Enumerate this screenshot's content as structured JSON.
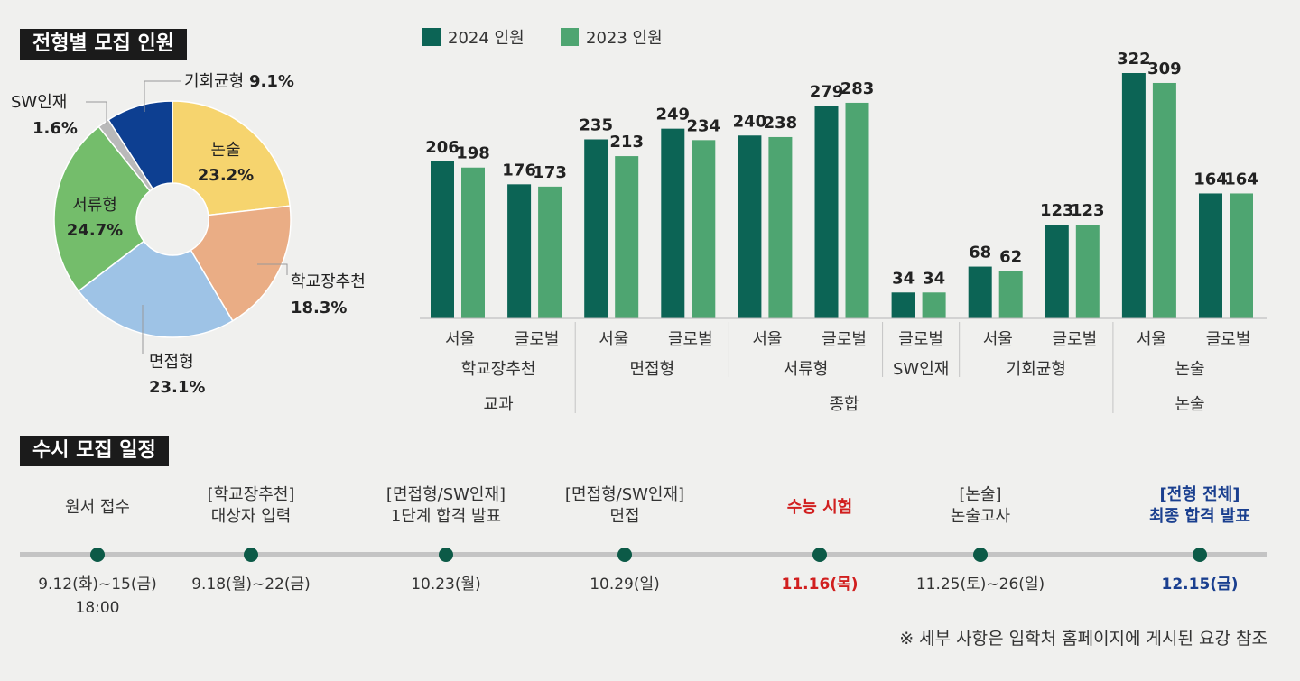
{
  "sections": {
    "composition_title": "전형별 모집 인원",
    "schedule_title": "수시 모집 일정"
  },
  "chart_data": [
    {
      "type": "pie",
      "title": "전형별 모집 인원",
      "donut": true,
      "slices": [
        {
          "label": "논술",
          "value": 23.2,
          "display": "23.2%",
          "color": "#f6d46e"
        },
        {
          "label": "학교장추천",
          "value": 18.3,
          "display": "18.3%",
          "color": "#eaad85"
        },
        {
          "label": "면접형",
          "value": 23.1,
          "display": "23.1%",
          "color": "#9ec3e6"
        },
        {
          "label": "서류형",
          "value": 24.7,
          "display": "24.7%",
          "color": "#74bd6b"
        },
        {
          "label": "SW인재",
          "value": 1.6,
          "display": "1.6%",
          "color": "#b9b9b9"
        },
        {
          "label": "기회균형",
          "value": 9.1,
          "display": "9.1%",
          "color": "#0d3f91"
        }
      ]
    },
    {
      "type": "bar",
      "title": "",
      "legend": [
        "2024 인원",
        "2023 인원"
      ],
      "colors": [
        "#0c6455",
        "#4ea571"
      ],
      "categories": [
        {
          "campus": "서울",
          "track": "학교장추천",
          "group": "교과"
        },
        {
          "campus": "글로벌",
          "track": "학교장추천",
          "group": "교과"
        },
        {
          "campus": "서울",
          "track": "면접형",
          "group": "종합"
        },
        {
          "campus": "글로벌",
          "track": "면접형",
          "group": "종합"
        },
        {
          "campus": "서울",
          "track": "서류형",
          "group": "종합"
        },
        {
          "campus": "글로벌",
          "track": "서류형",
          "group": "종합"
        },
        {
          "campus": "글로벌",
          "track": "SW인재",
          "group": "종합"
        },
        {
          "campus": "서울",
          "track": "기회균형",
          "group": "종합"
        },
        {
          "campus": "글로벌",
          "track": "기회균형",
          "group": "종합"
        },
        {
          "campus": "서울",
          "track": "논술",
          "group": "논술"
        },
        {
          "campus": "글로벌",
          "track": "논술",
          "group": "논술"
        }
      ],
      "series": [
        {
          "name": "2024 인원",
          "values": [
            206,
            176,
            235,
            249,
            240,
            279,
            34,
            68,
            123,
            322,
            164
          ]
        },
        {
          "name": "2023 인원",
          "values": [
            198,
            173,
            213,
            234,
            238,
            283,
            34,
            62,
            123,
            309,
            164
          ]
        }
      ],
      "tracks": [
        {
          "label": "학교장추천",
          "span": [
            0,
            1
          ]
        },
        {
          "label": "면접형",
          "span": [
            2,
            3
          ]
        },
        {
          "label": "서류형",
          "span": [
            4,
            5
          ]
        },
        {
          "label": "SW인재",
          "span": [
            6,
            6
          ]
        },
        {
          "label": "기회균형",
          "span": [
            7,
            8
          ]
        },
        {
          "label": "논술",
          "span": [
            9,
            10
          ]
        }
      ],
      "groups": [
        {
          "label": "교과",
          "span": [
            0,
            1
          ]
        },
        {
          "label": "종합",
          "span": [
            2,
            8
          ]
        },
        {
          "label": "논술",
          "span": [
            9,
            10
          ]
        }
      ],
      "ylim": [
        0,
        340
      ]
    }
  ],
  "timeline": {
    "events": [
      {
        "label_lines": [
          "원서 접수"
        ],
        "date_lines": [
          "9.12(화)~15(금)",
          "18:00"
        ],
        "highlight": ""
      },
      {
        "label_lines": [
          "[학교장추천]",
          "대상자 입력"
        ],
        "date_lines": [
          "9.18(월)~22(금)"
        ],
        "highlight": ""
      },
      {
        "label_lines": [
          "[면접형/SW인재]",
          "1단계 합격 발표"
        ],
        "date_lines": [
          "10.23(월)"
        ],
        "highlight": ""
      },
      {
        "label_lines": [
          "[면접형/SW인재]",
          "면접"
        ],
        "date_lines": [
          "10.29(일)"
        ],
        "highlight": ""
      },
      {
        "label_lines": [
          "수능 시험"
        ],
        "date_lines": [
          "11.16(목)"
        ],
        "highlight": "red"
      },
      {
        "label_lines": [
          "[논술]",
          "논술고사"
        ],
        "date_lines": [
          "11.25(토)~26(일)"
        ],
        "highlight": ""
      },
      {
        "label_lines": [
          "[전형 전체]",
          "최종 합격 발표"
        ],
        "date_lines": [
          "12.15(금)"
        ],
        "highlight": "blue"
      }
    ],
    "note": "※ 세부 사항은 입학처 홈페이지에 게시된 요강 참조"
  },
  "colors": {
    "red": "#d11f1f",
    "blue": "#1a3f8f",
    "dot": "#0c5a47",
    "line": "#c4c4c4"
  }
}
